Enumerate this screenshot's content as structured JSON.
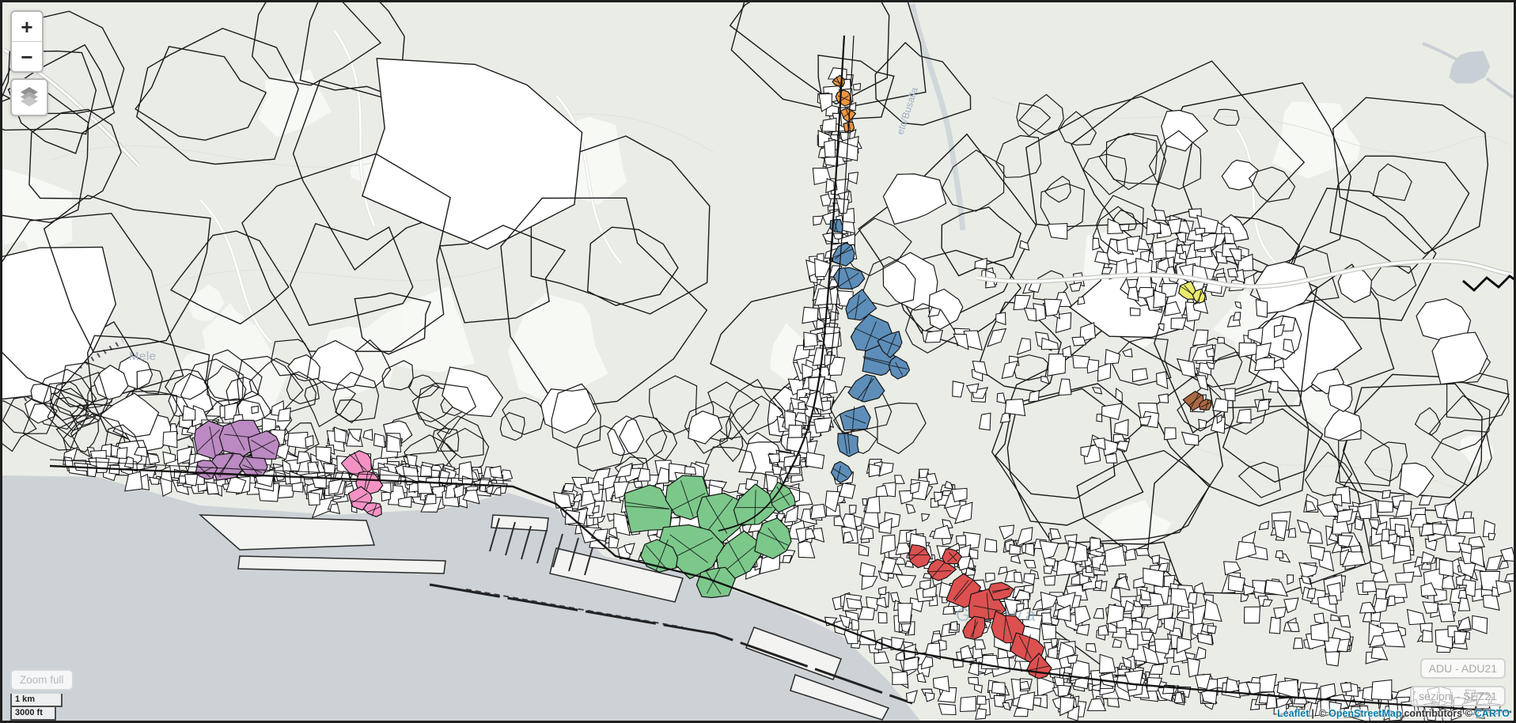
{
  "controls": {
    "zoom_in": "+",
    "zoom_out": "−",
    "zoom_full": "Zoom full"
  },
  "scale": {
    "metric": "1 km",
    "imperial": "3000 ft"
  },
  "layer_buttons": {
    "adu": "ADU - ADU21",
    "sezioni": "sezioni - SEZ21"
  },
  "attribution": {
    "leaflet": "Leaflet",
    "divider": "|",
    "copy1": "©",
    "osm": "OpenStreetMap",
    "contributors": "contributors ©",
    "carto": "CARTO",
    "link_color": "#0078A8"
  },
  "map_labels": {
    "town_west": "Mele",
    "road_north": "eto/Busalla",
    "city": "Genova"
  },
  "palette": {
    "land": "#eaede6",
    "sea": "#ccd2d6",
    "parcel_stroke": "#1a1a1a",
    "urban_fill": "#ffffff",
    "pier_fill": "#f3f4f1",
    "patch": "#f8faf6",
    "lake": "#c9d0d5",
    "road_casing": "#c9cdc5",
    "road_fill": "#ffffff",
    "label_color": "#a9b3c3"
  },
  "zones": [
    {
      "name": "zone-purple",
      "color": "#bb8ac2",
      "blobs": [
        [
          262,
          556,
          26
        ],
        [
          300,
          548,
          24
        ],
        [
          330,
          562,
          20
        ],
        [
          285,
          585,
          22
        ],
        [
          316,
          588,
          16
        ],
        [
          256,
          592,
          13
        ]
      ]
    },
    {
      "name": "zone-pink",
      "color": "#f492c4",
      "blobs": [
        [
          449,
          581,
          18
        ],
        [
          461,
          606,
          17
        ],
        [
          452,
          629,
          15
        ],
        [
          470,
          641,
          11
        ]
      ]
    },
    {
      "name": "zone-green",
      "color": "#7cc88b",
      "blobs": [
        [
          815,
          640,
          33
        ],
        [
          865,
          628,
          30
        ],
        [
          905,
          648,
          32
        ],
        [
          950,
          638,
          27
        ],
        [
          868,
          690,
          36
        ],
        [
          930,
          700,
          30
        ],
        [
          975,
          678,
          24
        ],
        [
          830,
          700,
          26
        ],
        [
          900,
          732,
          22
        ],
        [
          985,
          625,
          18
        ]
      ]
    },
    {
      "name": "zone-blue",
      "color": "#5d8eb9",
      "blobs": [
        [
          1054,
          282,
          10
        ],
        [
          1063,
          318,
          15
        ],
        [
          1070,
          350,
          18
        ],
        [
          1082,
          385,
          20
        ],
        [
          1096,
          420,
          24
        ],
        [
          1106,
          455,
          22
        ],
        [
          1091,
          490,
          20
        ],
        [
          1078,
          525,
          18
        ],
        [
          1068,
          558,
          16
        ],
        [
          1059,
          594,
          13
        ],
        [
          1122,
          432,
          17
        ],
        [
          1133,
          462,
          13
        ]
      ]
    },
    {
      "name": "zone-red",
      "color": "#dc5050",
      "blobs": [
        [
          1158,
          698,
          15
        ],
        [
          1184,
          718,
          18
        ],
        [
          1214,
          744,
          20
        ],
        [
          1244,
          764,
          22
        ],
        [
          1270,
          790,
          22
        ],
        [
          1294,
          815,
          20
        ],
        [
          1310,
          842,
          17
        ],
        [
          1262,
          744,
          13
        ],
        [
          1230,
          792,
          15
        ],
        [
          1200,
          700,
          11
        ]
      ]
    },
    {
      "name": "zone-orange",
      "color": "#ef9440",
      "blobs": [
        [
          1057,
          100,
          8
        ],
        [
          1063,
          121,
          10
        ],
        [
          1068,
          142,
          9
        ],
        [
          1070,
          158,
          7
        ]
      ]
    },
    {
      "name": "zone-yellow",
      "color": "#ebeb6e",
      "blobs": [
        [
          1499,
          365,
          12
        ],
        [
          1513,
          372,
          9
        ]
      ]
    },
    {
      "name": "zone-brown",
      "color": "#ac6a45",
      "blobs": [
        [
          1507,
          504,
          12
        ],
        [
          1521,
          509,
          8
        ]
      ]
    }
  ]
}
